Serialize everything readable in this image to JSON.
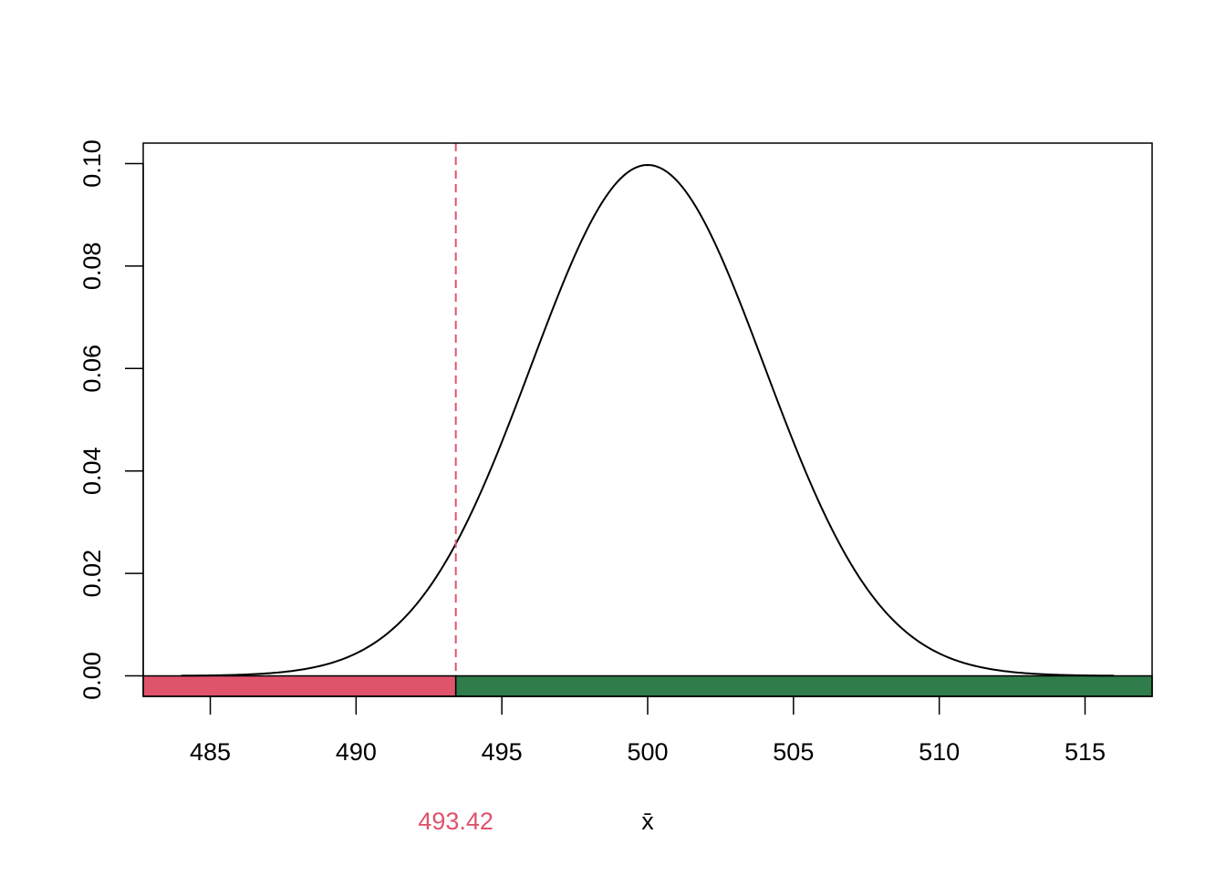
{
  "chart_data": {
    "type": "line",
    "title": "",
    "xlabel": "x̄",
    "ylabel": "",
    "xlim": [
      482.7,
      517.3
    ],
    "ylim": [
      -0.004,
      0.104
    ],
    "x_ticks": [
      485,
      490,
      495,
      500,
      505,
      510,
      515
    ],
    "x_tick_labels": [
      "485",
      "490",
      "495",
      "500",
      "505",
      "510",
      "515"
    ],
    "y_ticks": [
      0.0,
      0.02,
      0.04,
      0.06,
      0.08,
      0.1
    ],
    "y_tick_labels": [
      "0.00",
      "0.02",
      "0.04",
      "0.06",
      "0.08",
      "0.10"
    ],
    "series": [
      {
        "curve": "normal density",
        "mean": 500,
        "sd": 4,
        "x_range": [
          484,
          516
        ],
        "color": "#000000"
      }
    ],
    "critical_value": 493.42,
    "critical_label": "493.42",
    "regions": [
      {
        "from": 482.7,
        "to": 493.42,
        "color": "#DF536B",
        "meaning": "rejection"
      },
      {
        "from": 493.42,
        "to": 517.3,
        "color": "#2E7D4A",
        "meaning": "acceptance"
      }
    ],
    "critical_line_color": "#DF536B",
    "grid": false,
    "legend": "none"
  }
}
